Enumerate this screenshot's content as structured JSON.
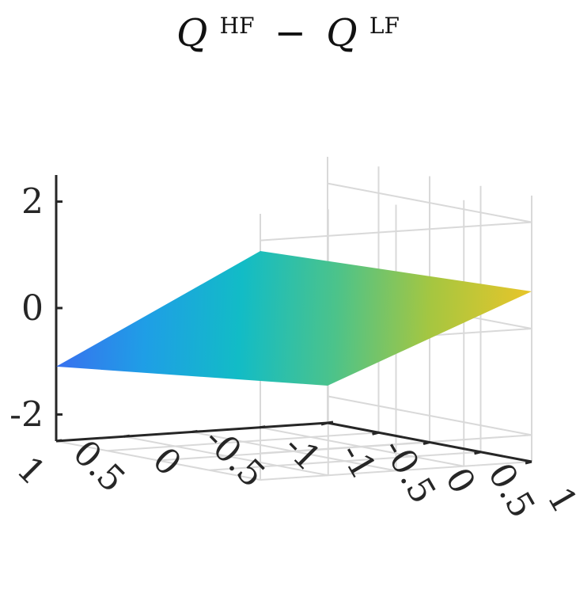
{
  "chart_data": {
    "type": "surface",
    "title": {
      "base1": "Q",
      "sup1": "HF",
      "operator": "−",
      "base2": "Q",
      "sup2": "LF"
    },
    "xlabel": "",
    "ylabel": "",
    "zlabel": "",
    "xlim": [
      -1,
      1
    ],
    "ylim": [
      -1,
      1
    ],
    "zlim": [
      -2.5,
      2.5
    ],
    "grid": true,
    "x_ticks": [
      "-1",
      "-0.5",
      "0",
      "0.5",
      "1"
    ],
    "y_ticks": [
      "-1",
      "-0.5",
      "0",
      "0.5",
      "1"
    ],
    "z_ticks": [
      "-2",
      "0",
      "2"
    ],
    "surface": {
      "corners": [
        {
          "x": -1,
          "y": -1,
          "z": -1.8
        },
        {
          "x": 1,
          "y": -1,
          "z": 0.7
        },
        {
          "x": -1,
          "y": 1,
          "z": -1.1
        },
        {
          "x": 1,
          "y": 1,
          "z": 1.8
        }
      ],
      "colormap": [
        "#3b6cf0",
        "#1f9ee6",
        "#12bcc6",
        "#4cc38a",
        "#a6c640",
        "#e6c52a"
      ]
    }
  }
}
